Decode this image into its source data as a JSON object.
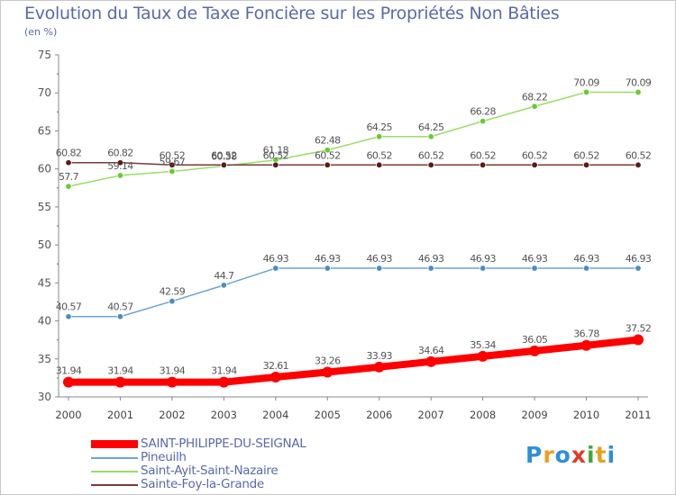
{
  "title": "Evolution du Taux de Taxe Foncière sur les Propriétés Non Bâties",
  "unit_label": "(en %)",
  "logo_text": "Proxiti",
  "logo_colors": [
    "#2f8fd8",
    "#e8a020",
    "#2f8fd8",
    "#e03a2a",
    "#3fa83f",
    "#e8a020",
    "#2f8fd8"
  ],
  "chart_data": {
    "type": "line",
    "title": "Evolution du Taux de Taxe Foncière sur les Propriétés Non Bâties",
    "ylabel": "(en %)",
    "xlabel": "",
    "categories": [
      "2000",
      "2001",
      "2002",
      "2003",
      "2004",
      "2005",
      "2006",
      "2007",
      "2008",
      "2009",
      "2010",
      "2011"
    ],
    "ylim": [
      30,
      75
    ],
    "yticks": [
      "30",
      "35",
      "40",
      "45",
      "50",
      "55",
      "60",
      "65",
      "70",
      "75"
    ],
    "grid": false,
    "legend_position": "bottom-left",
    "series": [
      {
        "name": "SAINT-PHILIPPE-DU-SEIGNAL",
        "color": "#ff0000",
        "marker_color": "#ff0000",
        "bold": true,
        "values": [
          31.94,
          31.94,
          31.94,
          31.94,
          32.61,
          33.26,
          33.93,
          34.64,
          35.34,
          36.05,
          36.78,
          37.52
        ],
        "labels": [
          "31.94",
          "31.94",
          "31.94",
          "31.94",
          "32.61",
          "33.26",
          "33.93",
          "34.64",
          "35.34",
          "36.05",
          "36.78",
          "37.52"
        ]
      },
      {
        "name": "Pineuilh",
        "color": "#6ca4d4",
        "marker_color": "#4a8cc8",
        "bold": false,
        "values": [
          40.57,
          40.57,
          42.59,
          44.7,
          46.93,
          46.93,
          46.93,
          46.93,
          46.93,
          46.93,
          46.93,
          46.93
        ],
        "labels": [
          "40.57",
          "40.57",
          "42.59",
          "44.7",
          "46.93",
          "46.93",
          "46.93",
          "46.93",
          "46.93",
          "46.93",
          "46.93",
          "46.93"
        ]
      },
      {
        "name": "Saint-Ayit-Saint-Nazaire",
        "color": "#99dd66",
        "marker_color": "#66cc33",
        "bold": false,
        "values": [
          57.7,
          59.14,
          59.67,
          60.38,
          61.18,
          62.48,
          64.25,
          64.25,
          66.28,
          68.22,
          70.09,
          70.09
        ],
        "labels": [
          "57.7",
          "59.14",
          "59.67",
          "60.38",
          "61.18",
          "62.48",
          "64.25",
          "64.25",
          "66.28",
          "68.22",
          "70.09",
          "70.09"
        ]
      },
      {
        "name": "Sainte-Foy-la-Grande",
        "color": "#7a3a3a",
        "marker_color": "#5a1a1a",
        "bold": false,
        "values": [
          60.82,
          60.82,
          60.52,
          60.52,
          60.52,
          60.52,
          60.52,
          60.52,
          60.52,
          60.52,
          60.52,
          60.52
        ],
        "labels": [
          "60.82",
          "60.82",
          "60.52",
          "60.52",
          "60.52",
          "60.52",
          "60.52",
          "60.52",
          "60.52",
          "60.52",
          "60.52",
          "60.52"
        ]
      }
    ]
  }
}
